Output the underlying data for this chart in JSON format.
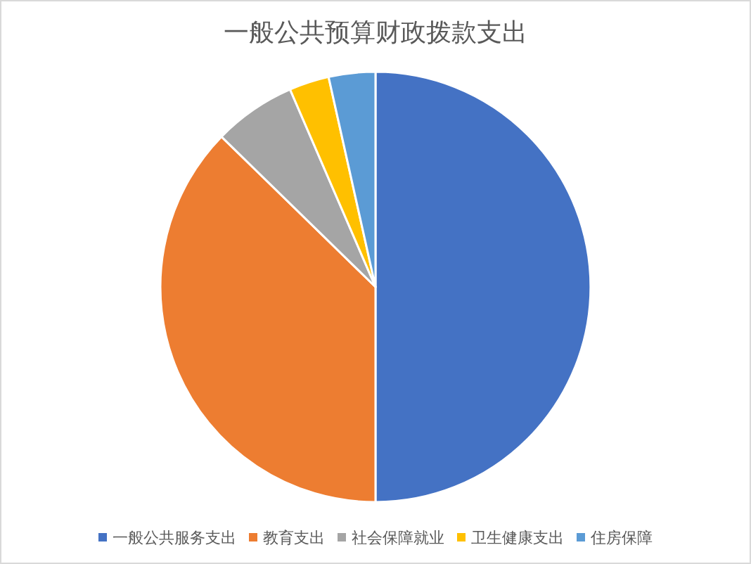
{
  "chart_data": {
    "type": "pie",
    "title": "一般公共预算财政拨款支出",
    "categories": [
      "一般公共服务支出",
      "教育支出",
      "社会保障就业",
      "卫生健康支出",
      "住房保障"
    ],
    "values": [
      50,
      37.3,
      6.2,
      3,
      3.5
    ],
    "colors": [
      "#4472c4",
      "#ed7d31",
      "#a5a5a5",
      "#ffc000",
      "#5b9bd5"
    ],
    "legend": "bottom"
  }
}
